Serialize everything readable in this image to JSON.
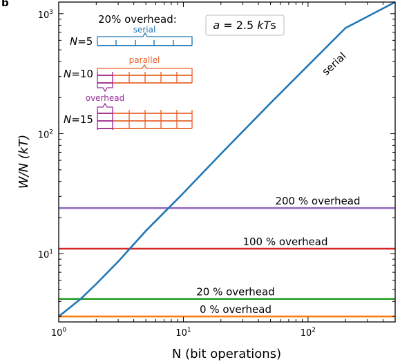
{
  "chart_data": {
    "type": "line",
    "panel_letter": "b",
    "xlabel": "N (bit operations)",
    "ylabel": "W/N (kT)",
    "xscale": "log",
    "yscale": "log",
    "xlim": [
      1,
      500
    ],
    "ylim": [
      2.7,
      1250
    ],
    "x_ticks": [
      {
        "base": "10",
        "exp": "0",
        "value": 1
      },
      {
        "base": "10",
        "exp": "1",
        "value": 10
      },
      {
        "base": "10",
        "exp": "2",
        "value": 100
      }
    ],
    "y_ticks": [
      {
        "base": "10",
        "exp": "1",
        "value": 10
      },
      {
        "base": "10",
        "exp": "2",
        "value": 100
      },
      {
        "base": "10",
        "exp": "3",
        "value": 1000
      }
    ],
    "series": [
      {
        "name": "serial",
        "color": "#1f77b4",
        "x": [
          1,
          1.5,
          2,
          3,
          5,
          10,
          20,
          50,
          100,
          200,
          500
        ],
        "y": [
          3.0,
          4.2,
          5.6,
          8.6,
          15.5,
          32,
          68,
          180,
          370,
          760,
          1250
        ]
      },
      {
        "name": "200 % overhead",
        "color": "#9467bd",
        "x": [
          1,
          500
        ],
        "y": [
          24,
          24
        ]
      },
      {
        "name": "100 % overhead",
        "color": "#d62728",
        "x": [
          1,
          500
        ],
        "y": [
          11,
          11
        ]
      },
      {
        "name": "20 % overhead",
        "color": "#2ca02c",
        "x": [
          1,
          500
        ],
        "y": [
          4.2,
          4.2
        ]
      },
      {
        "name": "0 % overhead",
        "color": "#ff7f0e",
        "x": [
          1,
          500
        ],
        "y": [
          3.0,
          3.0
        ]
      }
    ],
    "annotations": {
      "serial_label": "serial",
      "param_box": {
        "prefix": "a",
        "mid": " = 2.5 ",
        "unit": "kT",
        "suffix": "s"
      }
    },
    "inset": {
      "title": "20% overhead:",
      "serial_label": "serial",
      "parallel_label": "parallel",
      "overhead_label": "overhead",
      "n_symbol": "N",
      "rows": [
        "=5",
        "=10",
        "=15"
      ],
      "colors": {
        "serial": "#1f77b4",
        "parallel": "#e8622c",
        "overhead": "#9b2f9b"
      }
    }
  }
}
